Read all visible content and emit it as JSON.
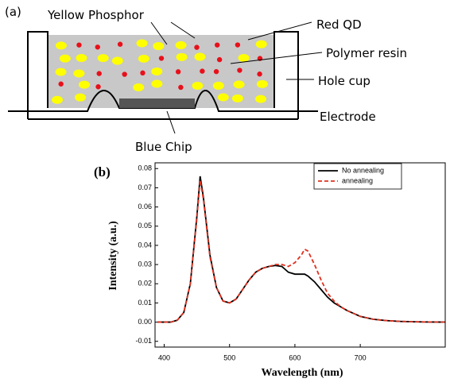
{
  "diagram": {
    "panel_label": "(a)",
    "labels": {
      "yellow": "Yellow Phosphor",
      "red": "Red QD",
      "resin": "Polymer resin",
      "cup": "Hole cup",
      "electrode": "Electrode",
      "chip": "Blue Chip"
    }
  },
  "chart_data": {
    "type": "line",
    "panel_label": "(b)",
    "x_label": "Wavelength (nm)",
    "y_label": "Intensity (a.u.)",
    "x": [
      390,
      400,
      410,
      420,
      430,
      440,
      450,
      455,
      460,
      470,
      480,
      490,
      500,
      510,
      520,
      530,
      540,
      550,
      560,
      570,
      580,
      590,
      600,
      610,
      615,
      620,
      630,
      640,
      650,
      660,
      670,
      680,
      690,
      700,
      720,
      740,
      760,
      780,
      800,
      830
    ],
    "series": [
      {
        "name": "No annealing",
        "color": "#000000",
        "dash": false,
        "values": [
          0,
          0,
          0,
          0.001,
          0.005,
          0.02,
          0.055,
          0.076,
          0.065,
          0.035,
          0.018,
          0.011,
          0.01,
          0.012,
          0.017,
          0.022,
          0.026,
          0.028,
          0.029,
          0.0295,
          0.029,
          0.026,
          0.025,
          0.025,
          0.025,
          0.024,
          0.021,
          0.017,
          0.013,
          0.01,
          0.008,
          0.006,
          0.0045,
          0.003,
          0.0015,
          0.0008,
          0.0004,
          0.0002,
          0.0001,
          0
        ]
      },
      {
        "name": "annealing",
        "color": "#e0301e",
        "dash": true,
        "values": [
          0,
          0,
          0,
          0.001,
          0.005,
          0.02,
          0.054,
          0.074,
          0.064,
          0.034,
          0.018,
          0.011,
          0.01,
          0.012,
          0.017,
          0.022,
          0.026,
          0.028,
          0.029,
          0.03,
          0.03,
          0.029,
          0.031,
          0.035,
          0.038,
          0.037,
          0.03,
          0.022,
          0.015,
          0.011,
          0.008,
          0.006,
          0.0045,
          0.003,
          0.0015,
          0.0008,
          0.0004,
          0.0002,
          0.0001,
          0
        ]
      }
    ],
    "xlim": [
      386,
      830
    ],
    "xticks": [
      400,
      500,
      600,
      700
    ],
    "ylim": [
      -0.013,
      0.083
    ],
    "yticks": [
      -0.01,
      {
        "value": 0,
        "label": "0.00"
      },
      0.01,
      0.02,
      0.03,
      0.04,
      0.05,
      0.06,
      0.07,
      0.08
    ],
    "legend": "top-right"
  }
}
